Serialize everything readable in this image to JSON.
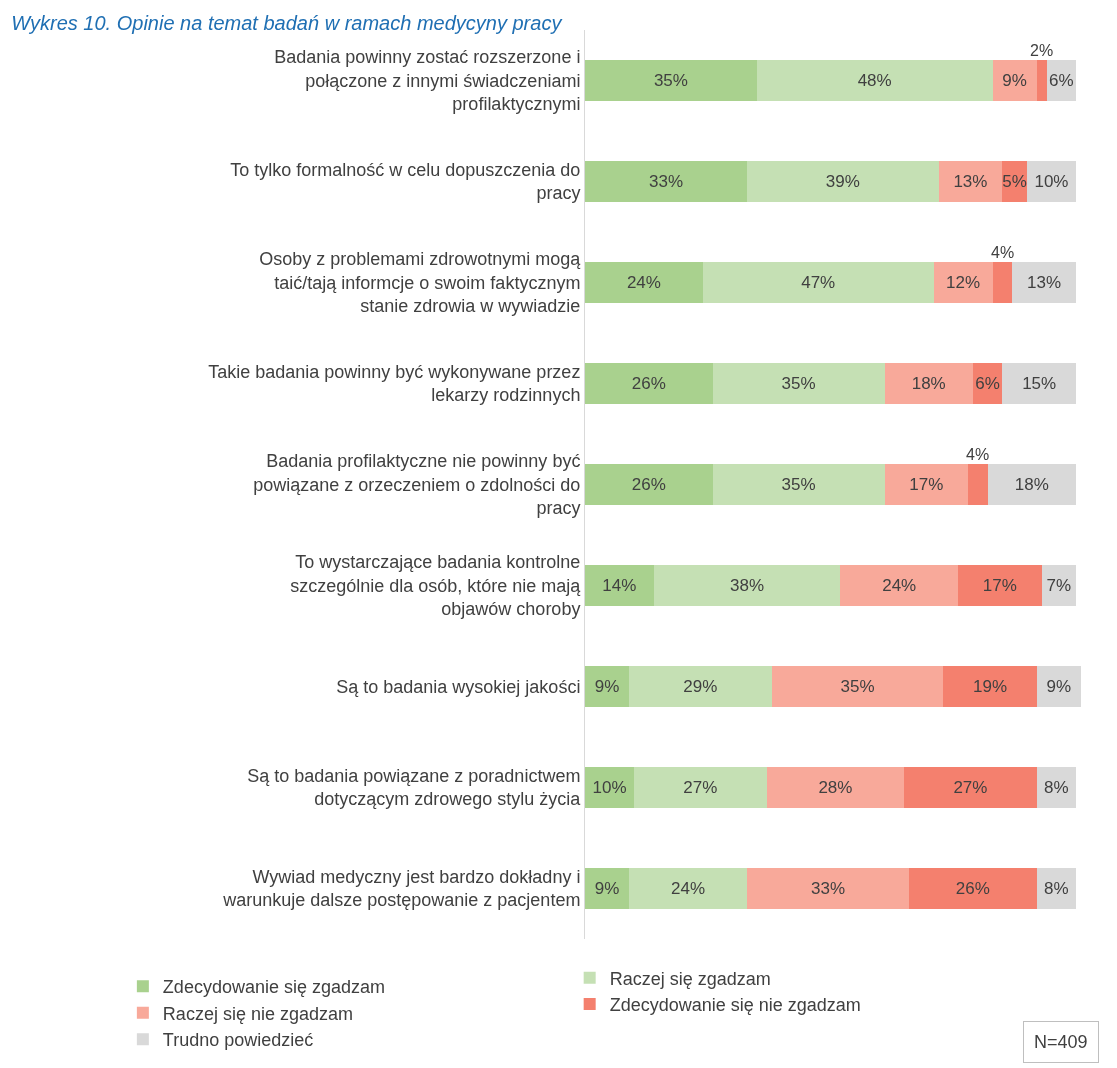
{
  "chart_data": {
    "type": "bar",
    "orientation": "horizontal",
    "stacked": true,
    "title": "Wykres 10. Opinie na temat badań w ramach medycyny pracy",
    "categories": [
      "Badania powinny zostać rozszerzone i połączone z innymi świadczeniami profilaktycznymi",
      "To tylko formalność w celu dopuszczenia do pracy",
      "Osoby z problemami zdrowotnymi mogą taić/tają informcje o swoim faktycznym stanie zdrowia w wywiadzie",
      "Takie badania powinny być wykonywane przez lekarzy rodzinnych",
      "Badania profilaktyczne nie powinny być powiązane z orzeczeniem o zdolności do pracy",
      "To wystarczające badania kontrolne szczególnie dla osób, które nie mają objawów choroby",
      "Są to badania wysokiej jakości",
      "Są to badania powiązane z poradnictwem dotyczącym zdrowego stylu życia",
      "Wywiad medyczny jest bardzo dokładny i warunkuje dalsze postępowanie z pacjentem"
    ],
    "series": [
      {
        "name": "Zdecydowanie się zgadzam",
        "color": "#a9d18e",
        "values": [
          35,
          33,
          24,
          26,
          26,
          14,
          9,
          10,
          9
        ],
        "value_labels": [
          "35%",
          "33%",
          "24%",
          "26%",
          "26%",
          "14%",
          "9%",
          "10%",
          "9%"
        ]
      },
      {
        "name": "Raczej się zgadzam",
        "color": "#c5e0b4",
        "values": [
          48,
          39,
          47,
          35,
          35,
          38,
          29,
          27,
          24
        ],
        "value_labels": [
          "48%",
          "39%",
          "47%",
          "35%",
          "35%",
          "38%",
          "29%",
          "27%",
          "24%"
        ]
      },
      {
        "name": "Raczej się nie zgadzam",
        "color": "#f8a99a",
        "values": [
          9,
          13,
          12,
          18,
          17,
          24,
          35,
          28,
          33
        ],
        "value_labels": [
          "9%",
          "13%",
          "12%",
          "18%",
          "17%",
          "24%",
          "35%",
          "28%",
          "33%"
        ]
      },
      {
        "name": "Zdecydowanie się nie zgadzam",
        "color": "#f4806e",
        "values": [
          2,
          5,
          4,
          6,
          4,
          17,
          19,
          27,
          26
        ],
        "value_labels": [
          "2%",
          "5%",
          "4%",
          "6%",
          "4%",
          "17%",
          "19%",
          "27%",
          "26%"
        ]
      },
      {
        "name": "Trudno powiedzieć",
        "color": "#d9d9d9",
        "values": [
          6,
          10,
          13,
          15,
          18,
          7,
          9,
          8,
          8
        ],
        "value_labels": [
          "6%",
          "10%",
          "13%",
          "15%",
          "18%",
          "7%",
          "9%",
          "8%",
          "8%"
        ]
      }
    ],
    "legend": "bottom",
    "grid": false,
    "annotations": [
      "N=409"
    ]
  }
}
